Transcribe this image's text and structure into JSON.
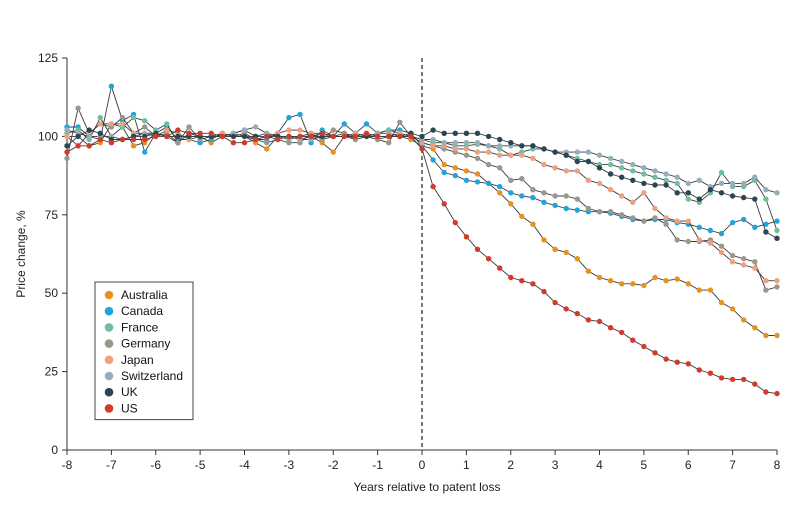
{
  "chart_data": {
    "type": "line",
    "xlabel": "Years relative to patent loss",
    "ylabel": "Price change, %",
    "xlim": [
      -8,
      8
    ],
    "ylim": [
      0,
      125
    ],
    "xticks": [
      -8,
      -7,
      -6,
      -5,
      -4,
      -3,
      -2,
      -1,
      0,
      1,
      2,
      3,
      4,
      5,
      6,
      7,
      8
    ],
    "yticks": [
      0,
      25,
      50,
      75,
      100,
      125
    ],
    "reference_line": {
      "x": 0,
      "style": "dashed"
    },
    "legend_position": "bottom-left",
    "x": [
      -8,
      -7.75,
      -7.5,
      -7.25,
      -7,
      -6.75,
      -6.5,
      -6.25,
      -6,
      -5.75,
      -5.5,
      -5.25,
      -5,
      -4.75,
      -4.5,
      -4.25,
      -4,
      -3.75,
      -3.5,
      -3.25,
      -3,
      -2.75,
      -2.5,
      -2.25,
      -2,
      -1.75,
      -1.5,
      -1.25,
      -1,
      -0.75,
      -0.5,
      -0.25,
      0,
      0.25,
      0.5,
      0.75,
      1,
      1.25,
      1.5,
      1.75,
      2,
      2.25,
      2.5,
      2.75,
      3,
      3.25,
      3.5,
      3.75,
      4,
      4.25,
      4.5,
      4.75,
      5,
      5.25,
      5.5,
      5.75,
      6,
      6.25,
      6.5,
      6.75,
      7,
      7.25,
      7.5,
      7.75,
      8
    ],
    "series": [
      {
        "name": "Australia",
        "color": "#E8921E",
        "values": [
          100,
          100,
          97,
          98,
          104,
          103,
          97,
          98,
          101,
          100,
          98,
          101,
          100,
          98,
          100,
          101,
          100,
          98,
          96,
          100,
          100,
          99,
          100,
          98,
          95,
          100,
          99,
          100,
          99,
          100,
          100,
          99,
          97,
          96,
          91,
          90,
          89,
          88,
          85,
          82,
          78.5,
          74.5,
          72,
          67,
          64,
          63,
          61,
          57,
          55,
          54,
          53,
          53,
          52.5,
          55,
          54,
          54.5,
          53,
          51,
          51,
          47,
          45,
          41.5,
          39,
          36.5,
          36.5
        ]
      },
      {
        "name": "Canada",
        "color": "#1EA6DC",
        "values": [
          103,
          103,
          100,
          99,
          116,
          105,
          107,
          95,
          101,
          103,
          99,
          99,
          98,
          99,
          101,
          100,
          100,
          99,
          99,
          101,
          106,
          107,
          98,
          102,
          100,
          104,
          101,
          104,
          101,
          102,
          102,
          101,
          97,
          92.5,
          88.5,
          87.5,
          86,
          85.5,
          85,
          84,
          82,
          81,
          80.5,
          79,
          78,
          77,
          76.5,
          76,
          76,
          75.5,
          74.5,
          73.5,
          73,
          73.5,
          73.5,
          72.5,
          72,
          71,
          70,
          69,
          72.5,
          73.5,
          71,
          72,
          73
        ]
      },
      {
        "name": "France",
        "color": "#6FBF9E",
        "values": [
          101,
          102,
          99,
          106,
          100,
          103,
          106,
          105,
          102,
          104,
          98,
          101,
          100,
          100,
          100,
          101,
          102,
          100,
          101,
          100,
          99,
          100,
          101,
          99,
          100,
          101,
          100,
          100,
          101,
          102,
          101,
          100,
          99,
          98,
          98,
          97,
          97,
          97.5,
          97,
          96,
          94,
          95,
          96,
          96,
          95,
          94,
          93,
          92,
          91,
          91,
          90,
          89,
          88,
          87,
          86,
          85,
          80,
          79,
          82,
          88.5,
          84,
          84,
          86,
          80,
          70
        ]
      },
      {
        "name": "Germany",
        "color": "#9C968C",
        "values": [
          93,
          109,
          101,
          104,
          103,
          106,
          101,
          103,
          100,
          101,
          98,
          103,
          99,
          100,
          100,
          100,
          101,
          99,
          98,
          99,
          98,
          98,
          101,
          99,
          102,
          101,
          99,
          100,
          99,
          98,
          104.5,
          100,
          98,
          97,
          96,
          95,
          94,
          93,
          91,
          90,
          86,
          86.5,
          83,
          82,
          81,
          81,
          80,
          77,
          76,
          76,
          75,
          74,
          73,
          74,
          72,
          67,
          66.5,
          66.5,
          67,
          65,
          62,
          61,
          60,
          51,
          52
        ]
      },
      {
        "name": "Japan",
        "color": "#EFA07E",
        "values": [
          100,
          97,
          101,
          104,
          104,
          104,
          101,
          101,
          100,
          102,
          101,
          99,
          100,
          100,
          101,
          100,
          100,
          99,
          100,
          101,
          102,
          102,
          101,
          101,
          100,
          100,
          101,
          100,
          100,
          100,
          101,
          100,
          98,
          97,
          97,
          96,
          96,
          95,
          95,
          94,
          94,
          94,
          93,
          91,
          90,
          89,
          89,
          86,
          85,
          83,
          81,
          79,
          82,
          77,
          74,
          73,
          73,
          67,
          66,
          63,
          60,
          59,
          58,
          54,
          54
        ]
      },
      {
        "name": "Switzerland",
        "color": "#93AFBB",
        "values": [
          102,
          101,
          100,
          100,
          100,
          99,
          100,
          101,
          101,
          100,
          100,
          100,
          100,
          100,
          100,
          101,
          102,
          103,
          101,
          100,
          100,
          99,
          99,
          100,
          100,
          100,
          100,
          100,
          101,
          101,
          100,
          100,
          99,
          99,
          98,
          98,
          98,
          98,
          97,
          97,
          97,
          97,
          97,
          96,
          95,
          95,
          95,
          95,
          94,
          93,
          92,
          91,
          90,
          89,
          88,
          87,
          85,
          86,
          84,
          85,
          85,
          85,
          87,
          83,
          82
        ]
      },
      {
        "name": "UK",
        "color": "#2B4652",
        "values": [
          97,
          100,
          102,
          101,
          99,
          99,
          100,
          100,
          101,
          100,
          100,
          100,
          100,
          100,
          100,
          100,
          100,
          100,
          100,
          100,
          100,
          100,
          100,
          100,
          100,
          100,
          100,
          100,
          100,
          100,
          100,
          101,
          100,
          102,
          101,
          101,
          101,
          101,
          100,
          99,
          98,
          97,
          97,
          96,
          95,
          94,
          92,
          92,
          90,
          88,
          87,
          86,
          85,
          84.5,
          84.5,
          82,
          82,
          80,
          83,
          82,
          81,
          80.5,
          80,
          69.5,
          67.5
        ]
      },
      {
        "name": "US",
        "color": "#D43A2B",
        "values": [
          95,
          97,
          97,
          99,
          98,
          99,
          99,
          99,
          100,
          100,
          102,
          101,
          101,
          101,
          100,
          98,
          98,
          99,
          100,
          99,
          100,
          100,
          100,
          101,
          100,
          100,
          100,
          101,
          100,
          100,
          100,
          100,
          96,
          84,
          78.5,
          72.5,
          68,
          64,
          61,
          58,
          55,
          54,
          53,
          50.5,
          47,
          45,
          43.5,
          41.5,
          41,
          39,
          37.5,
          35,
          33,
          31,
          29,
          28,
          27.5,
          25.5,
          24.5,
          23,
          22.5,
          22.5,
          21,
          18.5,
          18
        ]
      }
    ]
  }
}
